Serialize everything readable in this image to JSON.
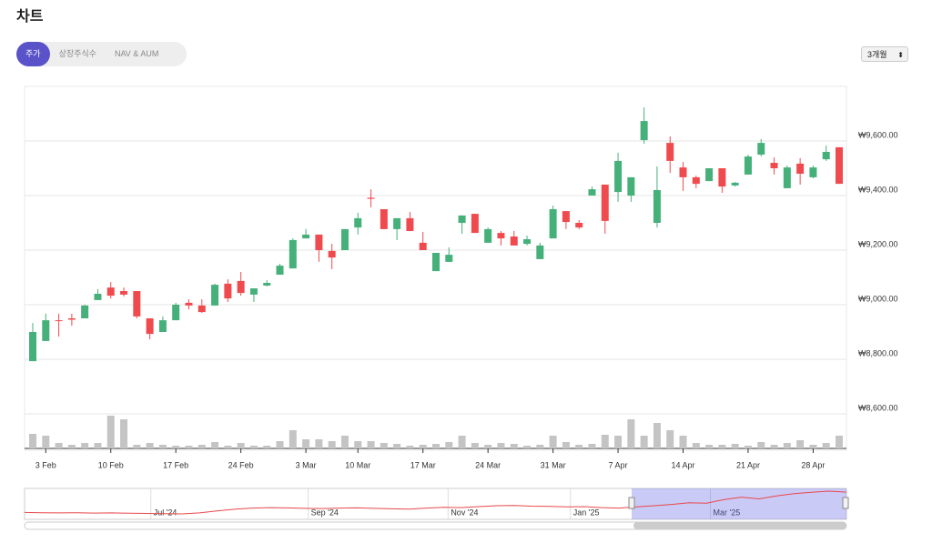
{
  "header": {
    "title": "차트"
  },
  "tabs": [
    {
      "label": "주가",
      "selected": true
    },
    {
      "label": "상장주식수",
      "selected": false
    },
    {
      "label": "NAV & AUM",
      "selected": false
    }
  ],
  "range_select": "3개월",
  "chart_data": {
    "type": "candlestick",
    "categories": [
      null,
      "3 Feb",
      null,
      null,
      null,
      null,
      "10 Feb",
      null,
      null,
      null,
      null,
      "17 Feb",
      null,
      null,
      null,
      null,
      "24 Feb",
      null,
      null,
      null,
      null,
      "3 Mar",
      null,
      null,
      null,
      "10 Mar",
      null,
      null,
      null,
      null,
      "17 Mar",
      null,
      null,
      null,
      null,
      "24 Mar",
      null,
      null,
      null,
      null,
      "31 Mar",
      null,
      null,
      null,
      null,
      "7 Apr",
      null,
      null,
      null,
      null,
      "14 Apr",
      null,
      null,
      null,
      null,
      "21 Apr",
      null,
      null,
      null,
      null,
      "28 Apr",
      null,
      null
    ],
    "open": [
      8793,
      8867,
      8943,
      8950,
      8950,
      9017,
      9063,
      9050,
      9050,
      8950,
      8900,
      8943,
      9007,
      8997,
      8997,
      9077,
      9087,
      9037,
      9070,
      9110,
      9133,
      9243,
      9257,
      9197,
      9200,
      9283,
      9392,
      9350,
      9277,
      9317,
      9227,
      9123,
      9157,
      9300,
      9333,
      9227,
      9263,
      9250,
      9223,
      9167,
      9243,
      9343,
      9300,
      9400,
      9440,
      9413,
      9400,
      9603,
      9300,
      9593,
      9503,
      9467,
      9453,
      9500,
      9437,
      9477,
      9550,
      9520,
      9427,
      9517,
      9467,
      9533,
      9577
    ],
    "high": [
      8933,
      8967,
      8967,
      8967,
      9000,
      9057,
      9083,
      9063,
      9050,
      8950,
      8957,
      9007,
      9020,
      9020,
      9077,
      9093,
      9120,
      9060,
      9090,
      9150,
      9243,
      9277,
      9257,
      9223,
      9277,
      9337,
      9423,
      9350,
      9317,
      9340,
      9267,
      9190,
      9210,
      9327,
      9333,
      9283,
      9270,
      9270,
      9253,
      9227,
      9363,
      9343,
      9310,
      9433,
      9440,
      9557,
      9467,
      9723,
      9507,
      9617,
      9523,
      9473,
      9500,
      9500,
      9450,
      9550,
      9607,
      9540,
      9510,
      9537,
      9510,
      9583,
      9577
    ],
    "low": [
      8793,
      8867,
      8883,
      8923,
      8950,
      9017,
      9023,
      9030,
      8950,
      8873,
      8900,
      8943,
      8983,
      8970,
      8997,
      9010,
      9033,
      9010,
      9067,
      9110,
      9133,
      9243,
      9157,
      9130,
      9200,
      9257,
      9357,
      9277,
      9237,
      9270,
      9200,
      9123,
      9157,
      9260,
      9263,
      9227,
      9217,
      9217,
      9217,
      9167,
      9243,
      9277,
      9277,
      9400,
      9260,
      9377,
      9377,
      9590,
      9283,
      9483,
      9417,
      9427,
      9453,
      9410,
      9433,
      9477,
      9543,
      9477,
      9427,
      9440,
      9463,
      9527,
      9443
    ],
    "close": [
      8900,
      8943,
      8940,
      8945,
      8997,
      9040,
      9033,
      9037,
      8957,
      8893,
      8943,
      9000,
      8997,
      8973,
      9073,
      9023,
      9043,
      9060,
      9080,
      9143,
      9237,
      9257,
      9200,
      9173,
      9277,
      9317,
      9388,
      9277,
      9317,
      9270,
      9200,
      9190,
      9183,
      9327,
      9263,
      9277,
      9243,
      9217,
      9240,
      9217,
      9350,
      9303,
      9283,
      9423,
      9307,
      9527,
      9467,
      9673,
      9420,
      9527,
      9467,
      9443,
      9500,
      9433,
      9447,
      9543,
      9593,
      9500,
      9503,
      9480,
      9503,
      9560,
      9443
    ],
    "up_color": "#45b07a",
    "down_color": "#ef4b4f",
    "ylim": [
      8600,
      9800
    ],
    "yticks": [
      {
        "value": 8600,
        "label": "₩8,600.00"
      },
      {
        "value": 8800,
        "label": "₩8,800.00"
      },
      {
        "value": 9000,
        "label": "₩9,000.00"
      },
      {
        "value": 9200,
        "label": "₩9,200.00"
      },
      {
        "value": 9400,
        "label": "₩9,400.00"
      },
      {
        "value": 9600,
        "label": "₩9,600.00"
      }
    ],
    "grid": true,
    "volume": {
      "color": "#c4c4c4",
      "values": [
        16,
        14,
        6,
        4,
        6,
        6,
        36,
        32,
        4,
        6,
        4,
        3,
        3,
        4,
        7,
        3,
        6,
        3,
        3,
        8,
        20,
        10,
        10,
        8,
        14,
        8,
        8,
        6,
        5,
        3,
        4,
        5,
        7,
        14,
        6,
        4,
        6,
        5,
        3,
        4,
        14,
        7,
        4,
        5,
        15,
        14,
        32,
        14,
        28,
        20,
        14,
        6,
        4,
        4,
        5,
        3,
        7,
        4,
        6,
        9,
        4,
        6,
        14
      ]
    },
    "navigator": {
      "color": "#e8484b",
      "categories": [
        null,
        null,
        null,
        null,
        null,
        null,
        null,
        null,
        "Jul '24",
        null,
        null,
        null,
        null,
        null,
        null,
        null,
        null,
        "Sep '24",
        null,
        null,
        null,
        null,
        null,
        null,
        null,
        "Nov '24",
        null,
        null,
        null,
        null,
        null,
        null,
        "Jan '25",
        null,
        null,
        null,
        null,
        null,
        null,
        null,
        "Mar '25",
        null,
        null,
        null,
        null,
        null,
        null,
        null
      ],
      "values": [
        8620,
        8610,
        8600,
        8605,
        8595,
        8600,
        8590,
        8580,
        8570,
        8560,
        8600,
        8680,
        8750,
        8800,
        8820,
        8810,
        8790,
        8780,
        8800,
        8810,
        8790,
        8770,
        8760,
        8800,
        8830,
        8820,
        8860,
        8900,
        8910,
        8880,
        8870,
        8850,
        8860,
        8820,
        8800,
        8850,
        8900,
        8950,
        9020,
        9000,
        9150,
        9250,
        9180,
        9300,
        9400,
        9450,
        9500,
        9460
      ]
    }
  }
}
